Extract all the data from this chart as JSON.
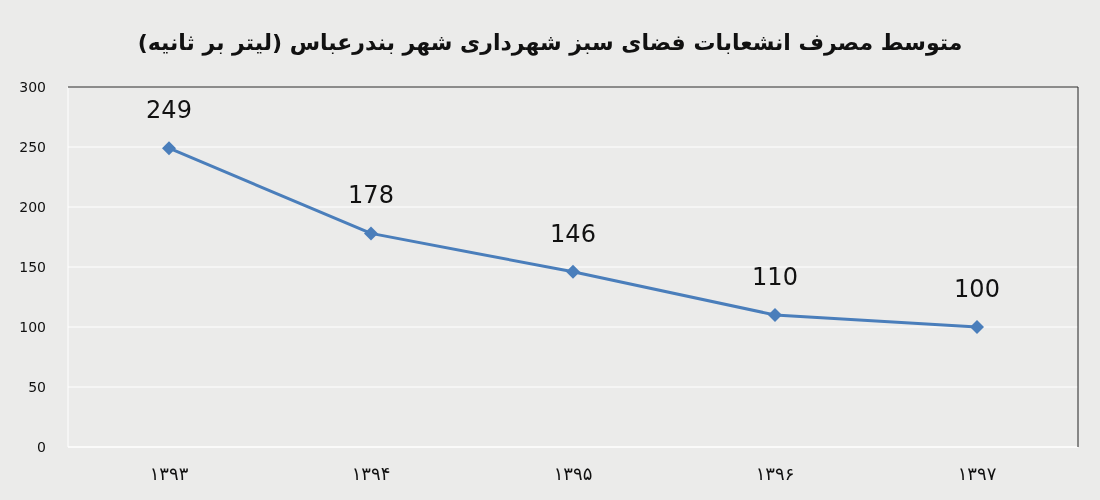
{
  "chart_data": {
    "type": "line",
    "title": "متوسط مصرف انشعابات فضای سبز شهرداری شهر بندرعباس (لیتر بر ثانیه)",
    "categories": [
      "۱۳۹۳",
      "۱۳۹۴",
      "۱۳۹۵",
      "۱۳۹۶",
      "۱۳۹۷"
    ],
    "series": [
      {
        "color": "#4a7ebb",
        "values": [
          249,
          178,
          146,
          110,
          100
        ]
      }
    ],
    "ylim": [
      0,
      300
    ],
    "yticks": [
      0,
      50,
      100,
      150,
      200,
      250,
      300
    ],
    "grid": "y",
    "marker": "diamond",
    "line_style": "solid",
    "data_labels": true
  }
}
